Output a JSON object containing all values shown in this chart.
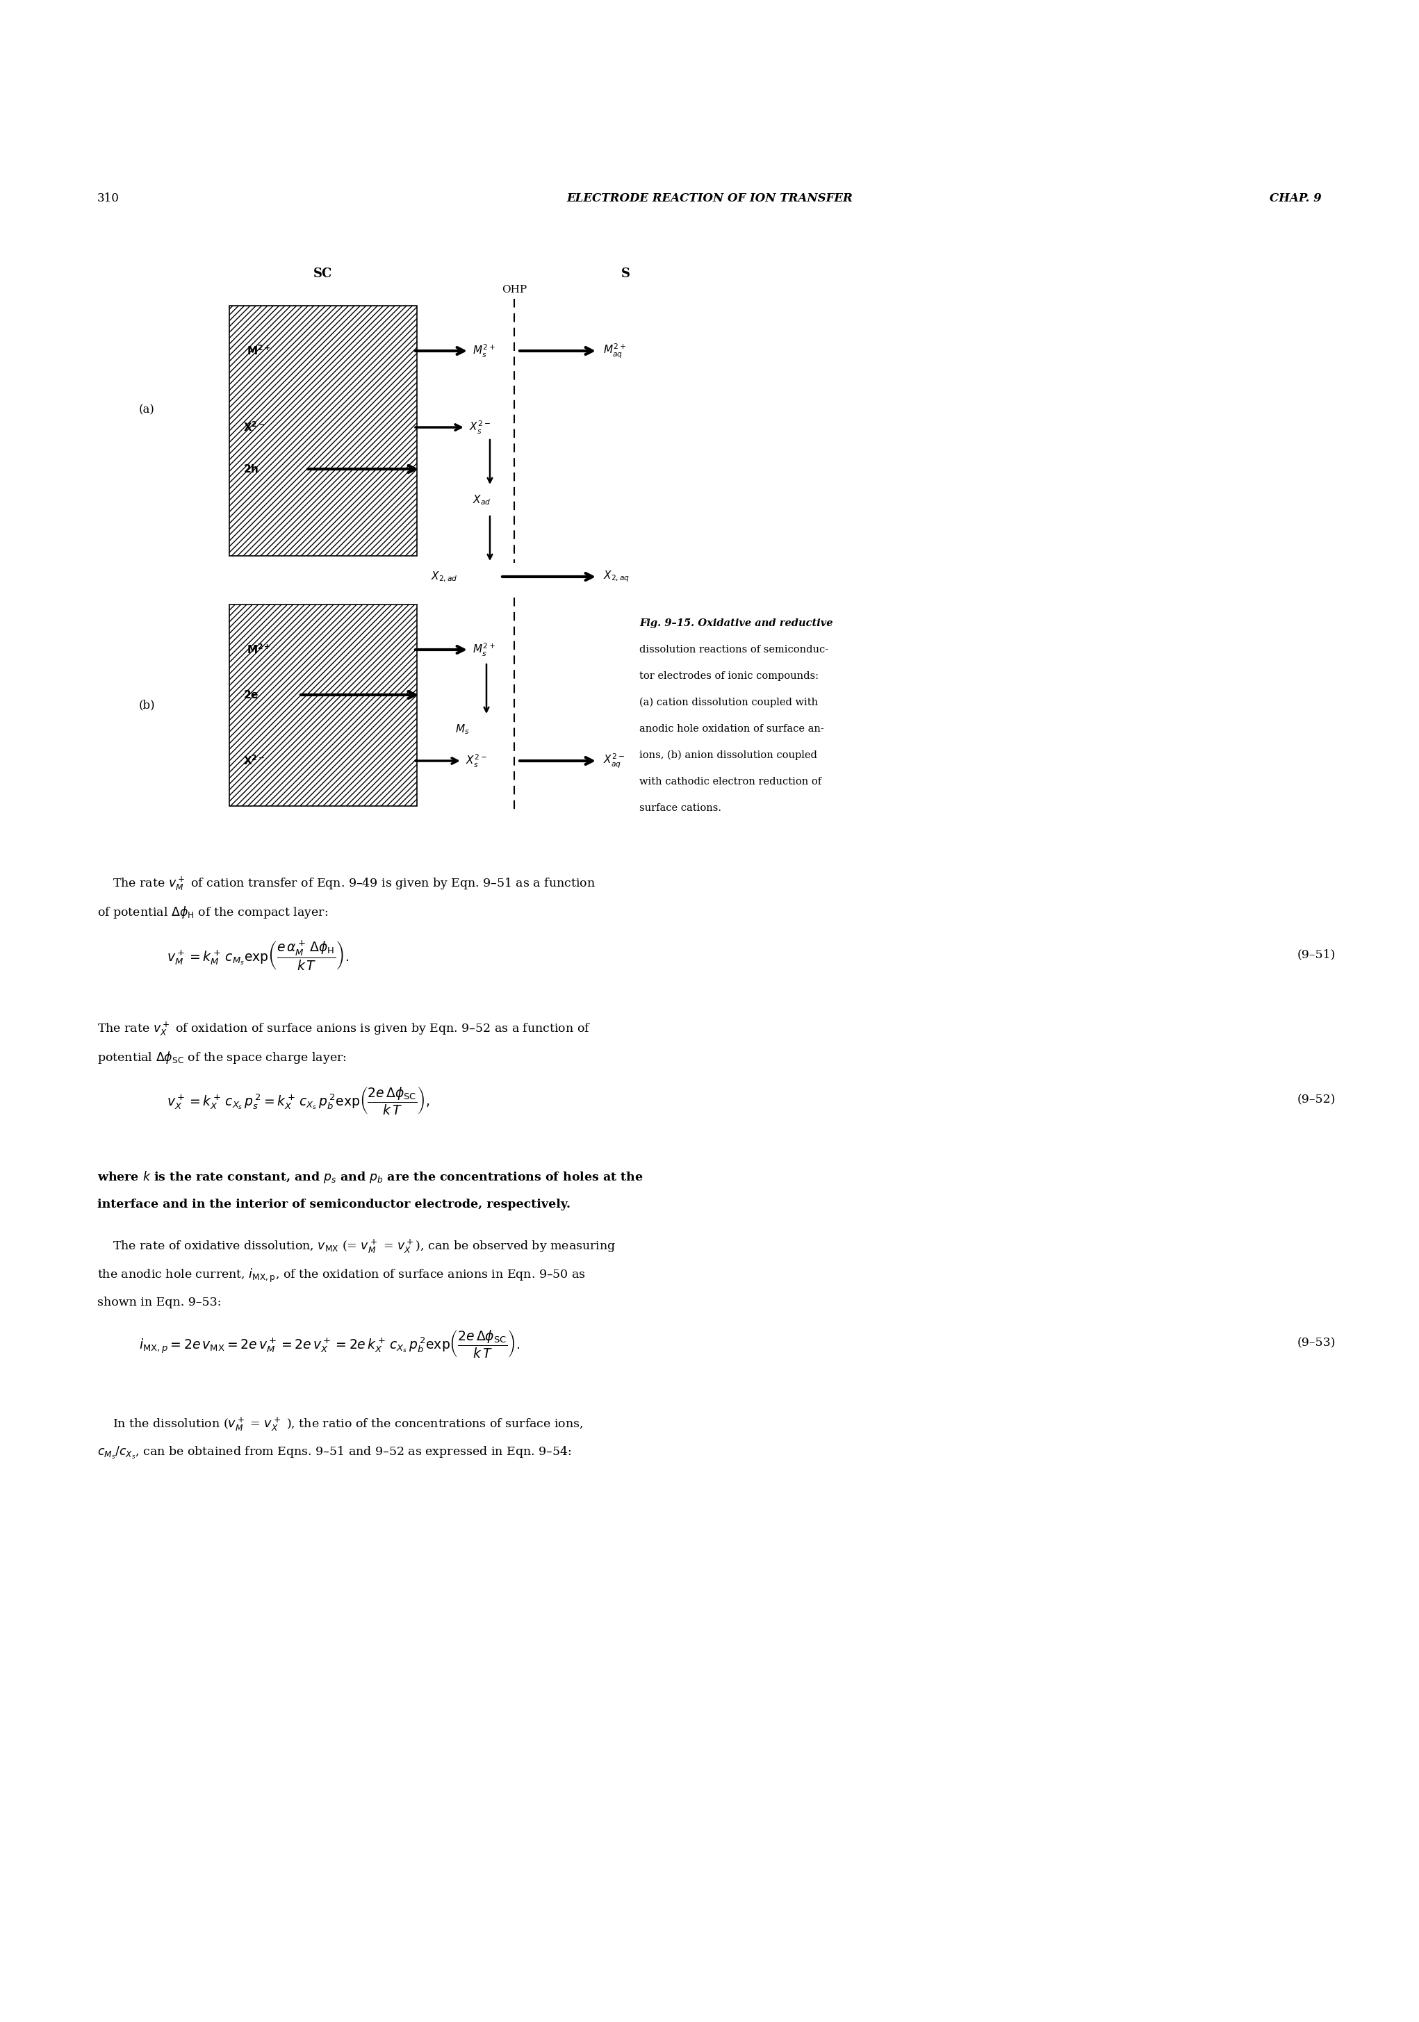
{
  "page_width": 20.42,
  "page_height": 29.1,
  "bg_color": "#ffffff",
  "header_page": "310",
  "header_title": "ELECTRODE REACTION OF ION TRANSFER",
  "header_chap": "CHAP. 9",
  "sc_label": "SC",
  "ohp_label": "OHP",
  "s_label": "S",
  "a_label": "(a)",
  "b_label": "(b)",
  "caption_line1": "Fig. 9–15. Oxidative and reductive",
  "caption_line2": "dissolution reactions of semiconduc-",
  "caption_line3": "tor electrodes of ionic compounds:",
  "caption_line4": "(a) cation dissolution coupled with",
  "caption_line5": "anodic hole oxidation of surface an-",
  "caption_line6": "ions, (b) anion dissolution coupled",
  "caption_line7": "with cathodic electron reduction of",
  "caption_line8": "surface cations.",
  "eq951_label": "(9–51)",
  "eq952_label": "(9–52)",
  "eq953_label": "(9–53)"
}
